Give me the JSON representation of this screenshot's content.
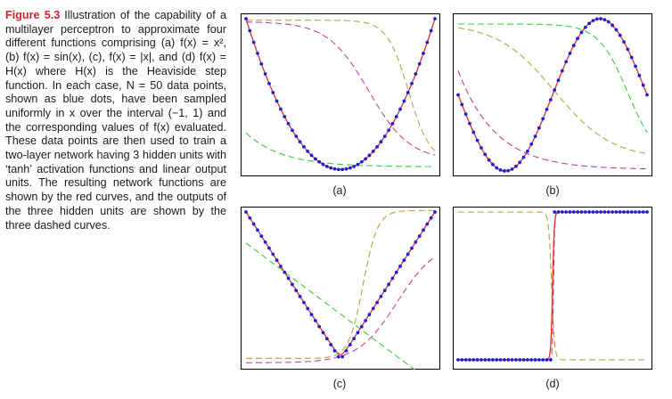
{
  "caption": {
    "figure_label": "Figure 5.3",
    "text": "Illustration of the capability of a multilayer perceptron to approximate four different functions comprising (a) f(x) = x², (b) f(x) = sin(x), (c), f(x) = |x|, and (d) f(x) = H(x) where H(x) is the Heaviside step function. In each case, N = 50 data points, shown as blue dots, have been sampled uniformly in x over the interval (−1, 1) and the corresponding values of f(x) evaluated. These data points are then used to train a two-layer network having 3 hidden units with ‘tanh’ activation functions and linear output units. The resulting network functions are shown by the red curves, and the outputs of the three hidden units are shown by the three dashed curves."
  },
  "panels": {
    "a": {
      "label": "(a)"
    },
    "b": {
      "label": "(b)"
    },
    "c": {
      "label": "(c)"
    },
    "d": {
      "label": "(d)"
    }
  },
  "colors": {
    "points": "#1f1fd6",
    "network": "#e0302a",
    "hidden_magenta": "#c0449a",
    "hidden_green": "#3ccc3c",
    "hidden_olive": "#b5a43a",
    "frame": "#000000",
    "figure_label": "#d4202b"
  }
}
